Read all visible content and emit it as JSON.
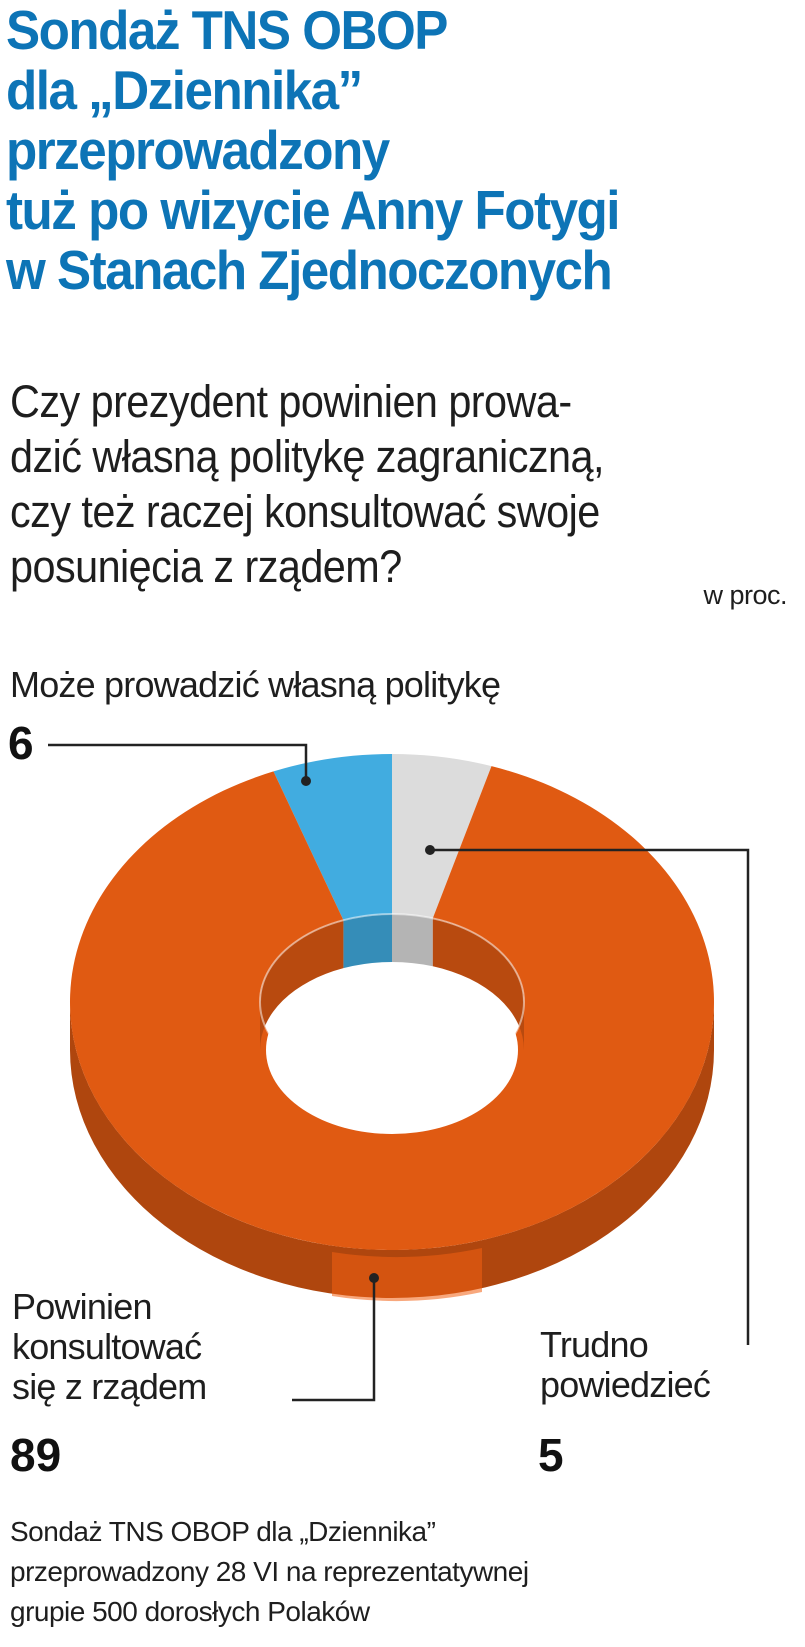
{
  "title_lines": [
    "Sondaż TNS OBOP",
    "dla „Dziennika”",
    "przeprowadzony",
    "tuż po wizycie Anny Fotygi",
    "w Stanach Zjednoczonych"
  ],
  "question_lines": [
    "Czy prezydent powinien prowa-",
    "dzić własną politykę zagraniczną,",
    "czy też raczej konsultować swoje",
    "posunięcia z rządem?"
  ],
  "unit": "w proc.",
  "chart_data": {
    "type": "pie",
    "variant": "donut-3d",
    "unit": "w proc.",
    "slices": [
      {
        "label": "Może prowadzić własną politykę",
        "value": 6,
        "value_label": "6",
        "color": "#41ace0"
      },
      {
        "label": "Trudno powiedzieć",
        "label_lines": [
          "Trudno",
          "powiedzieć"
        ],
        "value": 5,
        "value_label": "5",
        "color": "#dcdcdc"
      },
      {
        "label": "Powinien konsultować się z rządem",
        "label_lines": [
          "Powinien",
          "konsultować",
          "się z rządem"
        ],
        "value": 89,
        "value_label": "89",
        "color": "#e05a12"
      }
    ]
  },
  "source_lines": [
    "Sondaż TNS OBOP dla „Dziennika”",
    "przeprowadzony 28 VI na reprezentatywnej",
    "grupie 500 dorosłych Polaków"
  ],
  "colors": {
    "title": "#0d74b6",
    "text": "#1e1e1e",
    "leader": "#222222"
  }
}
